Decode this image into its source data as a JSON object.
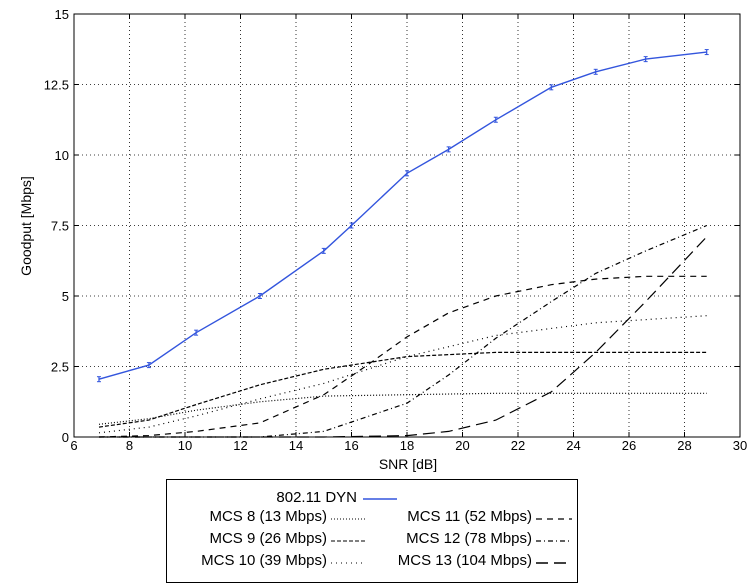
{
  "chart_data": {
    "type": "line",
    "title": "",
    "xlabel": "SNR [dB]",
    "ylabel": "Goodput [Mbps]",
    "xlim": [
      6,
      30
    ],
    "ylim": [
      0,
      15
    ],
    "x_ticks": [
      "6",
      "8",
      "10",
      "12",
      "14",
      "16",
      "18",
      "20",
      "22",
      "24",
      "26",
      "28",
      "30"
    ],
    "y_ticks": [
      "0",
      "2.5",
      "5",
      "7.5",
      "10",
      "12.5",
      "15"
    ],
    "grid": true,
    "legend_position": "below",
    "series": [
      {
        "name": "802.11 DYN",
        "color": "#3355dd",
        "style": "solid",
        "markers": true,
        "x": [
          6.9,
          8.7,
          10.4,
          12.7,
          15.0,
          16.0,
          18.0,
          19.5,
          21.2,
          23.2,
          24.8,
          26.6,
          28.8
        ],
        "y": [
          2.05,
          2.55,
          3.7,
          5.0,
          6.6,
          7.5,
          9.35,
          10.2,
          11.25,
          12.4,
          12.95,
          13.4,
          13.65
        ]
      },
      {
        "name": "MCS 8 (13 Mbps)",
        "color": "#000000",
        "style": "dotted",
        "x": [
          6.9,
          8.7,
          10.4,
          12.7,
          15.0,
          18.0,
          21.2,
          24.8,
          28.8
        ],
        "y": [
          0.45,
          0.65,
          0.95,
          1.25,
          1.45,
          1.5,
          1.55,
          1.55,
          1.55
        ]
      },
      {
        "name": "MCS 9 (26 Mbps)",
        "color": "#000000",
        "style": "dashed-short",
        "x": [
          6.9,
          8.7,
          10.4,
          12.7,
          15.0,
          18.0,
          21.2,
          24.8,
          28.8
        ],
        "y": [
          0.35,
          0.6,
          1.15,
          1.85,
          2.4,
          2.85,
          3.0,
          3.0,
          3.0
        ]
      },
      {
        "name": "MCS 10 (39 Mbps)",
        "color": "#000000",
        "style": "dotted-sparse",
        "x": [
          6.9,
          8.7,
          10.4,
          12.7,
          15.0,
          18.0,
          21.2,
          24.8,
          28.8
        ],
        "y": [
          0.15,
          0.35,
          0.75,
          1.35,
          1.9,
          2.85,
          3.6,
          4.05,
          4.3
        ]
      },
      {
        "name": "MCS 11 (52 Mbps)",
        "color": "#000000",
        "style": "dashed",
        "x": [
          6.9,
          8.7,
          10.4,
          12.7,
          15.0,
          16.5,
          18.0,
          19.5,
          21.2,
          23.2,
          24.8,
          26.6,
          28.8
        ],
        "y": [
          0.0,
          0.05,
          0.2,
          0.5,
          1.5,
          2.5,
          3.55,
          4.4,
          5.0,
          5.4,
          5.6,
          5.7,
          5.7
        ]
      },
      {
        "name": "MCS 12 (78 Mbps)",
        "color": "#000000",
        "style": "dash-dot",
        "x": [
          6.9,
          8.7,
          10.4,
          12.7,
          15.0,
          18.0,
          19.5,
          21.2,
          23.2,
          24.8,
          26.6,
          28.8
        ],
        "y": [
          0.0,
          0.0,
          0.0,
          0.0,
          0.2,
          1.2,
          2.2,
          3.5,
          4.8,
          5.8,
          6.6,
          7.5
        ]
      },
      {
        "name": "MCS 13 (104 Mbps)",
        "color": "#000000",
        "style": "long-dash",
        "x": [
          6.9,
          10.4,
          15.0,
          18.0,
          19.5,
          21.2,
          23.2,
          24.8,
          26.6,
          28.8
        ],
        "y": [
          0.0,
          0.0,
          0.0,
          0.05,
          0.2,
          0.6,
          1.6,
          3.0,
          4.8,
          7.1
        ]
      }
    ]
  }
}
